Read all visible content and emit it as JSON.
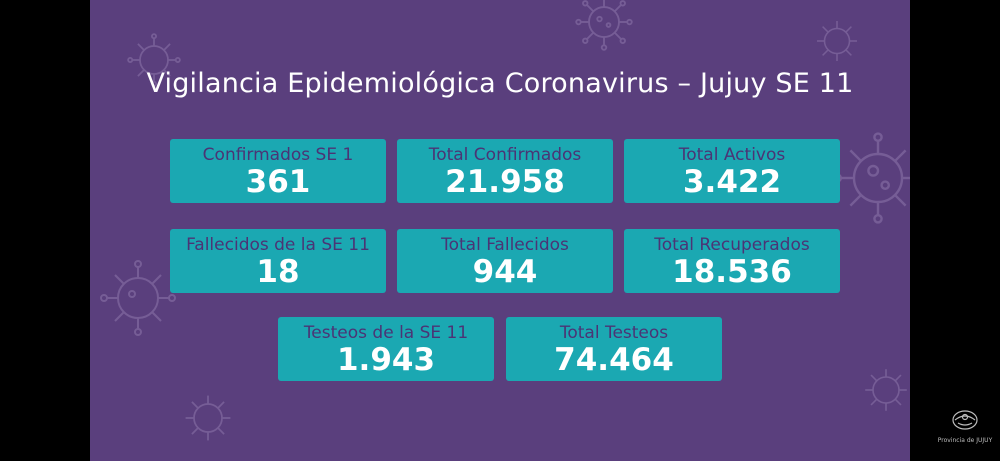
{
  "title": "Vigilancia Epidemiológica Coronavirus – Jujuy SE 11",
  "colors": {
    "background": "#5a3f7d",
    "card": "#1ba8b2",
    "label": "#4b3475",
    "value": "#ffffff"
  },
  "stats": [
    {
      "label": "Confirmados SE 1",
      "value": "361"
    },
    {
      "label": "Total Confirmados",
      "value": "21.958"
    },
    {
      "label": "Total Activos",
      "value": "3.422"
    },
    {
      "label": "Fallecidos de la SE 11",
      "value": "18"
    },
    {
      "label": "Total Fallecidos",
      "value": "944"
    },
    {
      "label": "Total Recuperados",
      "value": "18.536"
    },
    {
      "label": "Testeos de la SE 11",
      "value": "1.943"
    },
    {
      "label": "Total Testeos",
      "value": "74.464"
    }
  ],
  "logo": {
    "icon": "provincia-seal-icon",
    "text": "Provincia de JUJUY"
  }
}
